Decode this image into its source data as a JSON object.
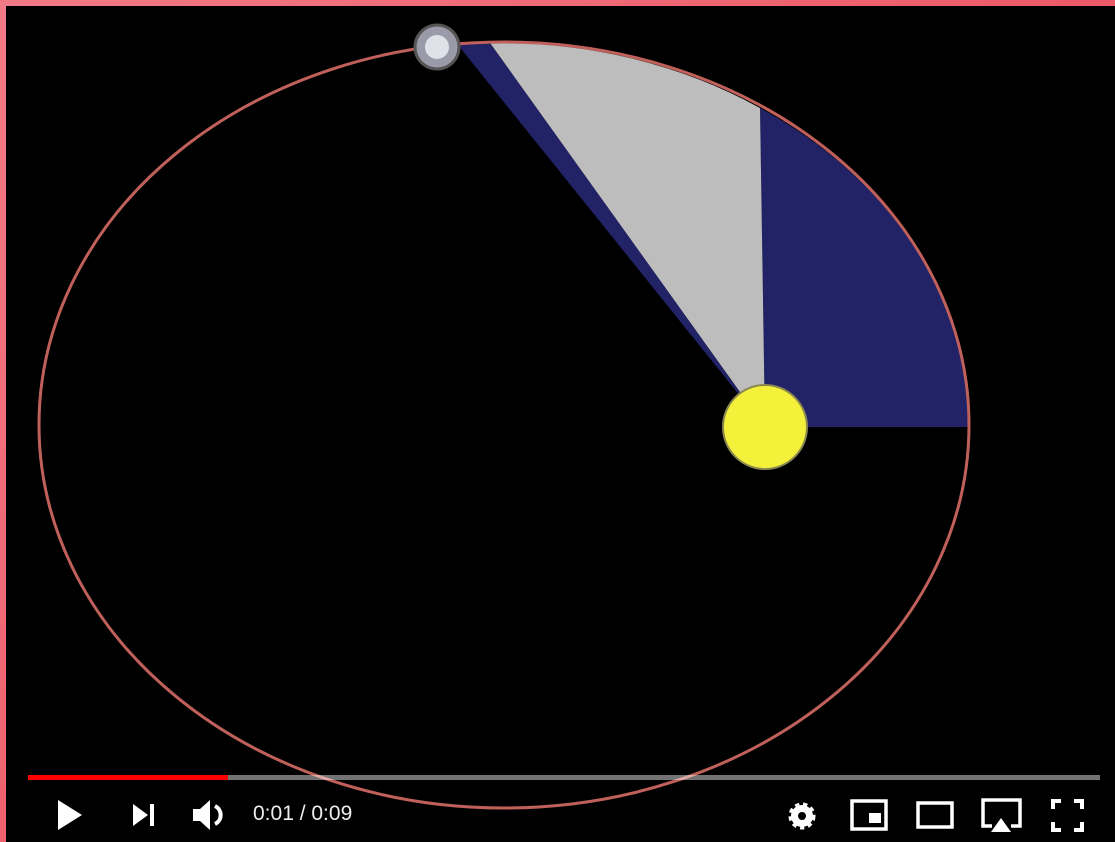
{
  "player": {
    "time_display": "0:01 / 0:09"
  }
}
